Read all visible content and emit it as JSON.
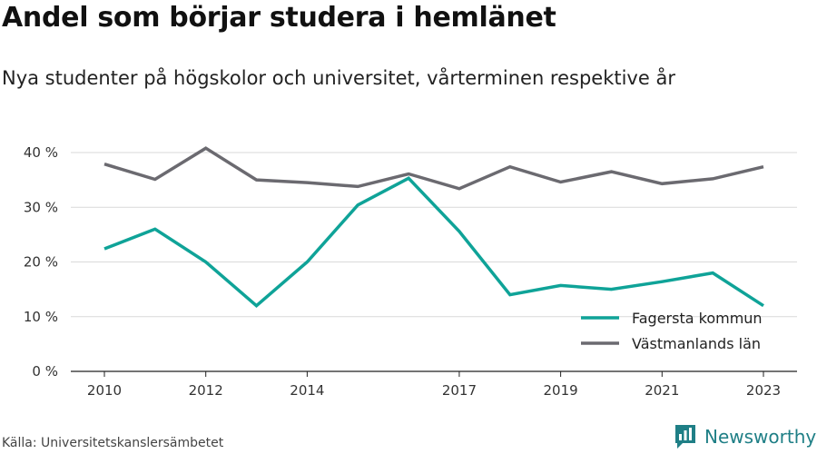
{
  "title": "Andel som börjar studera i hemlänet",
  "subtitle": "Nya studenter på högskolor och universitet, vårterminen respektive år",
  "source": "Källa: Universitetskanslersämbetet",
  "brand": {
    "name": "Newsworthy",
    "icon": "newsworthy-logo-icon",
    "color": "#1f7f86"
  },
  "chart_data": {
    "type": "line",
    "x": [
      2010,
      2011,
      2012,
      2013,
      2014,
      2015,
      2016,
      2017,
      2018,
      2019,
      2020,
      2021,
      2022,
      2023
    ],
    "x_tick_labels": [
      "2010",
      "2012",
      "2014",
      "2017",
      "2019",
      "2021",
      "2023"
    ],
    "y_tick_labels": [
      "0 %",
      "10 %",
      "20 %",
      "30 %",
      "40 %"
    ],
    "ylim": [
      0,
      40
    ],
    "grid": true,
    "legend_position": "bottom-right",
    "series": [
      {
        "name": "Fagersta kommun",
        "color": "#0fa398",
        "values": [
          22.4,
          26.0,
          20.0,
          12.0,
          20.0,
          30.4,
          35.3,
          25.6,
          14.0,
          15.7,
          15.0,
          16.4,
          18.0,
          12.0
        ]
      },
      {
        "name": "Västmanlands län",
        "color": "#6b6a70",
        "values": [
          37.9,
          35.1,
          40.8,
          35.0,
          34.5,
          33.8,
          36.1,
          33.4,
          37.4,
          34.6,
          36.5,
          34.3,
          35.2,
          37.4
        ]
      }
    ]
  }
}
